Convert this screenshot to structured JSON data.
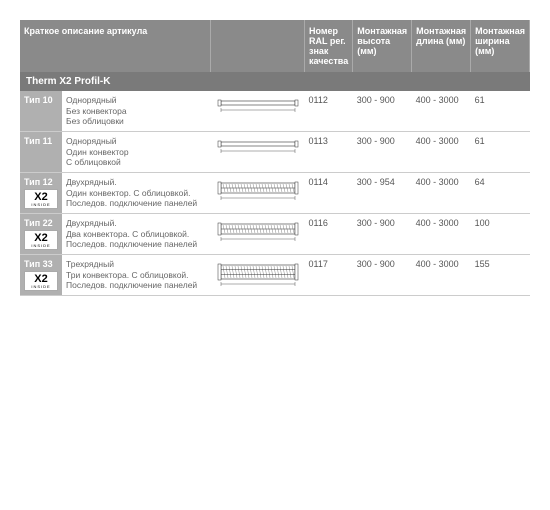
{
  "colors": {
    "header_bg": "#8a8a8a",
    "section_bg": "#7a7a7a",
    "type_bg": "#b0b0b0",
    "border": "#cccccc",
    "text": "#555555",
    "white": "#ffffff"
  },
  "headers": {
    "desc": "Краткое описание артикула",
    "ral": "Номер RAL рег. знак качества",
    "height": "Монтажная высота (мм)",
    "length": "Монтажная длина (мм)",
    "width": "Монтажная ширина (мм)"
  },
  "section_title": "Therm X2 Profil-K",
  "x2_label": "X2",
  "x2_sub": "INSIDE",
  "rows": [
    {
      "type": "Тип 10",
      "desc": "Однорядный\nБез конвектора\nБез облицовки",
      "has_x2": false,
      "layers": 1,
      "ral": "0112",
      "height": "300 - 900",
      "length": "400 - 3000",
      "width": "61"
    },
    {
      "type": "Тип 11",
      "desc": "Однорядный\nОдин конвектор\nС облицовкой",
      "has_x2": false,
      "layers": 1,
      "ral": "0113",
      "height": "300 - 900",
      "length": "400 - 3000",
      "width": "61"
    },
    {
      "type": "Тип 12",
      "desc": "Двухрядный.\nОдин конвектор. С облицовкой.\nПоследов. подключение панелей",
      "has_x2": true,
      "layers": 2,
      "ral": "0114",
      "height": "300 - 954",
      "length": "400 - 3000",
      "width": "64"
    },
    {
      "type": "Тип 22",
      "desc": "Двухрядный.\nДва конвектора. С облицовкой.\nПоследов. подключение панелей",
      "has_x2": true,
      "layers": 2,
      "ral": "0116",
      "height": "300 - 900",
      "length": "400 - 3000",
      "width": "100"
    },
    {
      "type": "Тип 33",
      "desc": "Трехрядный\nТри конвектора. С облицовкой.\nПоследов. подключение панелей",
      "has_x2": true,
      "layers": 3,
      "ral": "0117",
      "height": "300 - 900",
      "length": "400 - 3000",
      "width": "155"
    }
  ]
}
